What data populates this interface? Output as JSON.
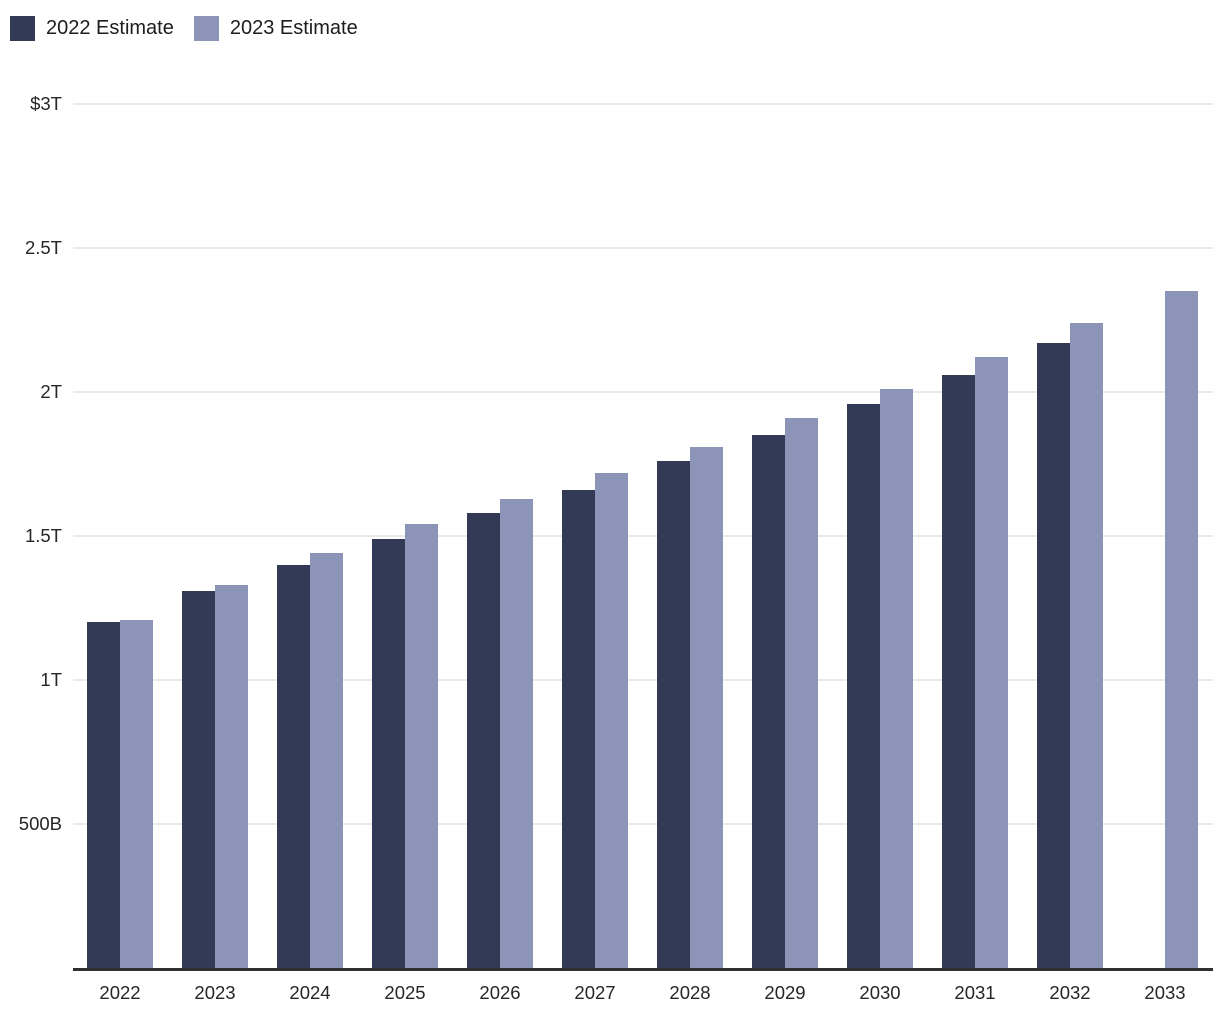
{
  "chart_data": {
    "type": "bar",
    "title": "",
    "categories": [
      "2022",
      "2023",
      "2024",
      "2025",
      "2026",
      "2027",
      "2028",
      "2029",
      "2030",
      "2031",
      "2032",
      "2033"
    ],
    "series": [
      {
        "name": "2022 Estimate",
        "color": "#333a56",
        "values": [
          1.2,
          1.31,
          1.4,
          1.49,
          1.58,
          1.66,
          1.76,
          1.85,
          1.96,
          2.06,
          2.17,
          null
        ]
      },
      {
        "name": "2023 Estimate",
        "color": "#8c94b8",
        "values": [
          1.21,
          1.33,
          1.44,
          1.54,
          1.63,
          1.72,
          1.81,
          1.91,
          2.01,
          2.12,
          2.24,
          2.35
        ]
      }
    ],
    "y_ticks": [
      {
        "label": "$3T",
        "value": 3.0
      },
      {
        "label": "2.5T",
        "value": 2.5
      },
      {
        "label": "2T",
        "value": 2.0
      },
      {
        "label": "1.5T",
        "value": 1.5
      },
      {
        "label": "1T",
        "value": 1.0
      },
      {
        "label": "500B",
        "value": 0.5
      }
    ],
    "ylim": [
      0,
      3
    ],
    "xlabel": "",
    "ylabel": "",
    "grid": true,
    "legend_position": "top-left",
    "colors": {
      "axis_line": "#2e2e33",
      "gridline": "#e9e9e9",
      "tick_text": "#262626",
      "legend_text": "#1d1d1d",
      "background": "#ffffff"
    }
  }
}
